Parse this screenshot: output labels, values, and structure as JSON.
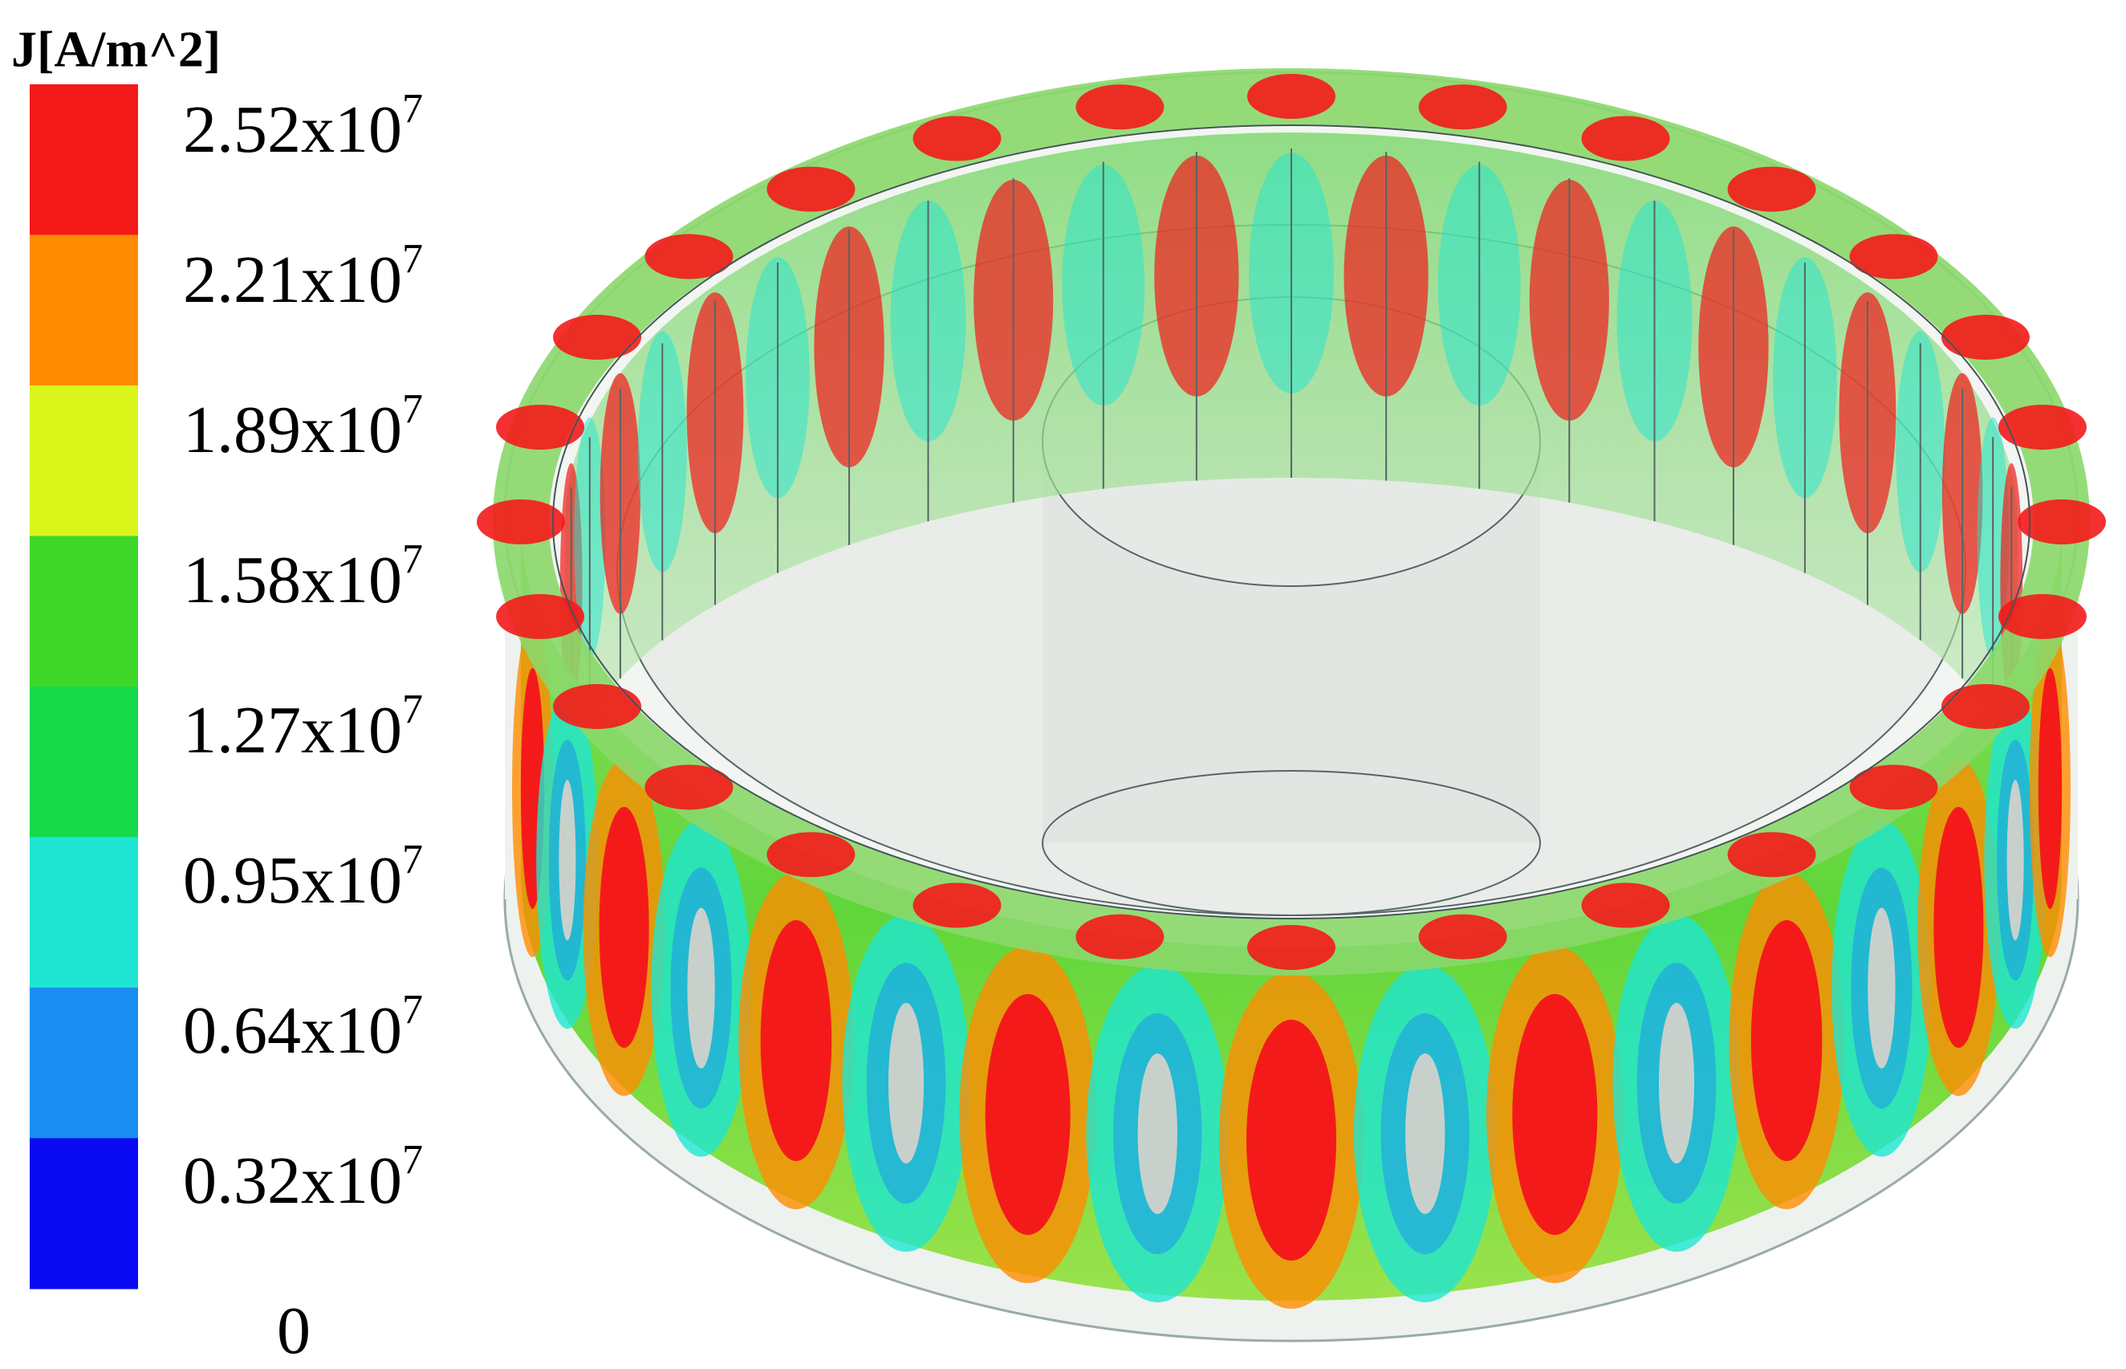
{
  "legend": {
    "title": "J[A/m^2]",
    "levels": [
      {
        "text": "2.52x10",
        "sup": "7"
      },
      {
        "text": "2.21x10",
        "sup": "7"
      },
      {
        "text": "1.89x10",
        "sup": "7"
      },
      {
        "text": "1.58x10",
        "sup": "7"
      },
      {
        "text": "1.27x10",
        "sup": "7"
      },
      {
        "text": "0.95x10",
        "sup": "7"
      },
      {
        "text": "0.64x10",
        "sup": "7"
      },
      {
        "text": "0.32x10",
        "sup": "7"
      },
      {
        "text": "0"
      }
    ],
    "colors": [
      "#f41a1a",
      "#ff8c00",
      "#d9f51a",
      "#3fd62a",
      "#17d94a",
      "#1ee6d2",
      "#1a8ef0",
      "#0a0af2"
    ]
  }
}
